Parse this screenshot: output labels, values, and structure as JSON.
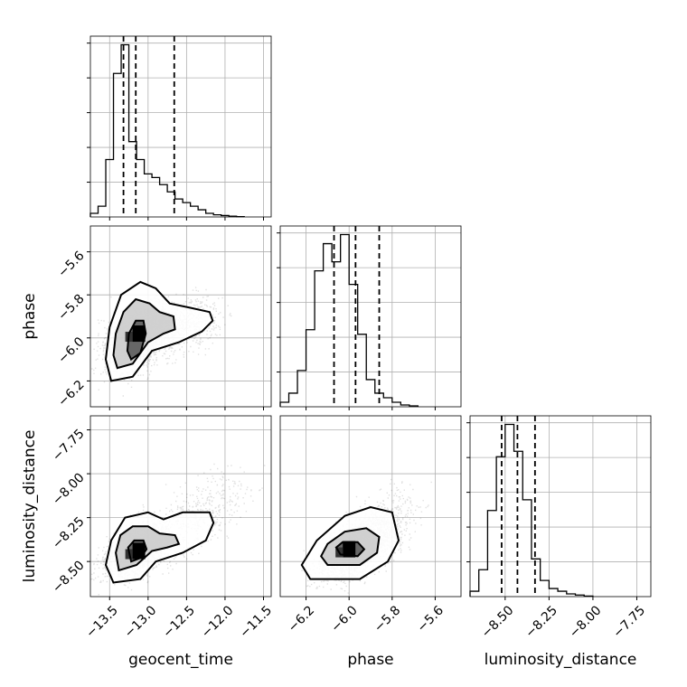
{
  "chart_data": {
    "type": "corner",
    "parameters": [
      "geocent_time",
      "phase",
      "luminosity_distance"
    ],
    "axis_labels": {
      "bottom": [
        "geocent_time",
        "phase",
        "luminosity_distance"
      ],
      "left": [
        "phase",
        "luminosity_distance"
      ]
    },
    "ranges": {
      "geocent_time": [
        -13.75,
        -11.4
      ],
      "phase": [
        -6.32,
        -5.48
      ],
      "luminosity_distance": [
        -8.7,
        -7.67
      ]
    },
    "ticks": {
      "geocent_time": [
        -13.5,
        -13.0,
        -12.5,
        -12.0,
        -11.5
      ],
      "phase": [
        -6.2,
        -6.0,
        -5.8,
        -5.6
      ],
      "luminosity_distance": [
        -8.5,
        -8.25,
        -8.0,
        -7.75
      ]
    },
    "tick_labels": {
      "geocent_time": [
        "−13.5",
        "−13.0",
        "−12.5",
        "−12.0",
        "−11.5"
      ],
      "phase": [
        "−6.2",
        "−6.0",
        "−5.8",
        "−5.6"
      ],
      "luminosity_distance": [
        "−8.50",
        "−8.25",
        "−8.00",
        "−7.75"
      ],
      "phase_left": [
        "−5.6",
        "−5.8",
        "−6.0",
        "−6.2"
      ],
      "luminosity_distance_left": [
        "−7.75",
        "−8.00",
        "−8.25",
        "−8.50"
      ]
    },
    "quantiles": {
      "geocent_time": [
        -13.32,
        -13.16,
        -12.66
      ],
      "phase": [
        -6.07,
        -5.97,
        -5.86
      ],
      "luminosity_distance": [
        -8.52,
        -8.43,
        -8.33
      ]
    },
    "histograms": {
      "geocent_time": {
        "edges_start": -13.75,
        "bin_width": 0.1,
        "counts": [
          1,
          3,
          16,
          40,
          48,
          21,
          16,
          12,
          11,
          9,
          7,
          5,
          4,
          3,
          2,
          1,
          0.6,
          0.4,
          0.2,
          0.1
        ]
      },
      "phase": {
        "edges_start": -6.32,
        "bin_width": 0.04,
        "counts": [
          1,
          3,
          8,
          17,
          30,
          36,
          32,
          38,
          27,
          16,
          6,
          3,
          2,
          1,
          0.4,
          0.2
        ]
      },
      "luminosity_distance": {
        "edges_start": -8.7,
        "bin_width": 0.05,
        "counts": [
          1,
          5,
          16,
          26,
          32,
          27,
          18,
          7,
          3,
          1.5,
          1,
          0.5,
          0.3,
          0.1
        ]
      }
    },
    "joint": [
      {
        "x": "geocent_time",
        "y": "phase",
        "mean": [
          -13.15,
          -6.0
        ],
        "sd": [
          0.22,
          0.07
        ],
        "corr": 0.35,
        "tail": {
          "to": [
            -12.2,
            -5.9
          ],
          "spread": [
            0.15,
            0.06
          ]
        },
        "peak": [
          -13.12,
          -5.98
        ],
        "contours": [
          [
            [
              -13.22,
              -6.1
            ],
            [
              -13.1,
              -6.07
            ],
            [
              -13.03,
              -5.98
            ],
            [
              -13.06,
              -5.92
            ],
            [
              -13.16,
              -5.92
            ],
            [
              -13.25,
              -5.98
            ],
            [
              -13.27,
              -6.06
            ]
          ],
          [
            [
              -13.4,
              -6.14
            ],
            [
              -13.2,
              -6.12
            ],
            [
              -13.0,
              -6.02
            ],
            [
              -12.8,
              -5.98
            ],
            [
              -12.65,
              -5.96
            ],
            [
              -12.67,
              -5.9
            ],
            [
              -12.85,
              -5.88
            ],
            [
              -12.98,
              -5.84
            ],
            [
              -13.16,
              -5.82
            ],
            [
              -13.32,
              -5.88
            ],
            [
              -13.42,
              -5.98
            ],
            [
              -13.45,
              -6.08
            ]
          ],
          [
            [
              -13.48,
              -6.2
            ],
            [
              -13.2,
              -6.18
            ],
            [
              -12.95,
              -6.06
            ],
            [
              -12.6,
              -6.02
            ],
            [
              -12.3,
              -5.97
            ],
            [
              -12.16,
              -5.92
            ],
            [
              -12.2,
              -5.88
            ],
            [
              -12.45,
              -5.86
            ],
            [
              -12.72,
              -5.84
            ],
            [
              -12.9,
              -5.77
            ],
            [
              -13.1,
              -5.74
            ],
            [
              -13.35,
              -5.8
            ],
            [
              -13.5,
              -5.95
            ],
            [
              -13.55,
              -6.1
            ]
          ]
        ]
      },
      {
        "x": "geocent_time",
        "y": "luminosity_distance",
        "mean": [
          -13.15,
          -8.44
        ],
        "sd": [
          0.22,
          0.07
        ],
        "corr": 0.45,
        "tail": {
          "to": [
            -11.9,
            -8.1
          ],
          "spread": [
            0.2,
            0.08
          ]
        },
        "peak": [
          -13.12,
          -8.44
        ],
        "contours": [
          [
            [
              -13.22,
              -8.5
            ],
            [
              -13.1,
              -8.48
            ],
            [
              -13.02,
              -8.43
            ],
            [
              -13.06,
              -8.38
            ],
            [
              -13.18,
              -8.38
            ],
            [
              -13.26,
              -8.42
            ]
          ],
          [
            [
              -13.38,
              -8.55
            ],
            [
              -13.15,
              -8.52
            ],
            [
              -12.95,
              -8.44
            ],
            [
              -12.75,
              -8.42
            ],
            [
              -12.6,
              -8.4
            ],
            [
              -12.65,
              -8.35
            ],
            [
              -12.85,
              -8.34
            ],
            [
              -13.0,
              -8.3
            ],
            [
              -13.2,
              -8.3
            ],
            [
              -13.36,
              -8.35
            ],
            [
              -13.42,
              -8.45
            ]
          ],
          [
            [
              -13.45,
              -8.62
            ],
            [
              -13.1,
              -8.6
            ],
            [
              -12.9,
              -8.5
            ],
            [
              -12.55,
              -8.45
            ],
            [
              -12.25,
              -8.38
            ],
            [
              -12.15,
              -8.28
            ],
            [
              -12.2,
              -8.22
            ],
            [
              -12.55,
              -8.22
            ],
            [
              -12.8,
              -8.26
            ],
            [
              -13.0,
              -8.22
            ],
            [
              -13.3,
              -8.25
            ],
            [
              -13.48,
              -8.38
            ],
            [
              -13.55,
              -8.52
            ]
          ]
        ]
      },
      {
        "x": "phase",
        "y": "luminosity_distance",
        "mean": [
          -5.98,
          -8.44
        ],
        "sd": [
          0.08,
          0.08
        ],
        "corr": 0.55,
        "tail": {
          "to": [
            -5.75,
            -8.2
          ],
          "spread": [
            0.06,
            0.08
          ]
        },
        "peak": [
          -6.0,
          -8.43
        ],
        "contours": [
          [
            [
              -6.04,
              -8.46
            ],
            [
              -5.96,
              -8.47
            ],
            [
              -5.93,
              -8.43
            ],
            [
              -5.96,
              -8.39
            ],
            [
              -6.03,
              -8.39
            ],
            [
              -6.06,
              -8.42
            ]
          ],
          [
            [
              -6.1,
              -8.52
            ],
            [
              -5.95,
              -8.52
            ],
            [
              -5.87,
              -8.45
            ],
            [
              -5.86,
              -8.36
            ],
            [
              -5.92,
              -8.31
            ],
            [
              -6.02,
              -8.33
            ],
            [
              -6.1,
              -8.4
            ],
            [
              -6.13,
              -8.47
            ]
          ],
          [
            [
              -6.18,
              -8.6
            ],
            [
              -5.95,
              -8.6
            ],
            [
              -5.82,
              -8.5
            ],
            [
              -5.77,
              -8.38
            ],
            [
              -5.8,
              -8.22
            ],
            [
              -5.9,
              -8.19
            ],
            [
              -6.02,
              -8.24
            ],
            [
              -6.15,
              -8.38
            ],
            [
              -6.22,
              -8.52
            ]
          ]
        ]
      }
    ]
  }
}
